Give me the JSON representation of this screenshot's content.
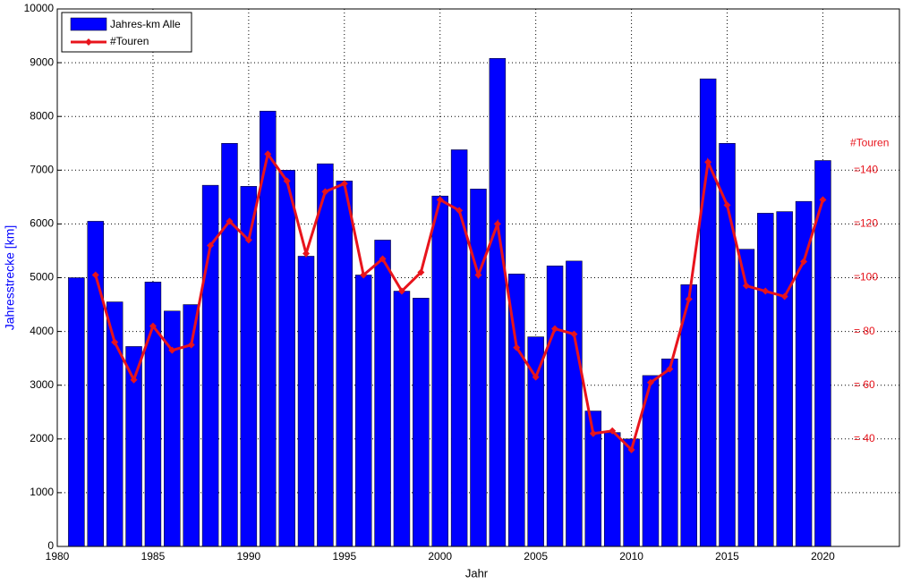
{
  "chart_data": {
    "type": "bar_line",
    "x_label": "Jahr",
    "y_label": "Jahresstrecke [km]",
    "y2_label": "#Touren",
    "x": [
      1981,
      1982,
      1983,
      1984,
      1985,
      1986,
      1987,
      1988,
      1989,
      1990,
      1991,
      1992,
      1993,
      1994,
      1995,
      1996,
      1997,
      1998,
      1999,
      2000,
      2001,
      2002,
      2003,
      2004,
      2005,
      2006,
      2007,
      2008,
      2009,
      2010,
      2011,
      2012,
      2013,
      2014,
      2015,
      2016,
      2017,
      2018,
      2019,
      2020
    ],
    "series": [
      {
        "name": "Jahres-km Alle",
        "color": "#0000ff",
        "kind": "bar",
        "values": [
          5000,
          6050,
          4550,
          3720,
          4920,
          4380,
          4500,
          6720,
          7500,
          6700,
          8100,
          7000,
          5400,
          7120,
          6800,
          5050,
          5700,
          4750,
          4620,
          6520,
          7380,
          6650,
          9080,
          5070,
          3900,
          5220,
          5310,
          2520,
          2120,
          2000,
          3180,
          3490,
          4870,
          8700,
          7500,
          5530,
          6200,
          6230,
          6420,
          7180
        ]
      },
      {
        "name": "#Touren",
        "color": "#e8141c",
        "kind": "line",
        "axis": "y2",
        "values": [
          null,
          101,
          76,
          62,
          82,
          73,
          75,
          112,
          121,
          114,
          146,
          136,
          109,
          132,
          135,
          101,
          107,
          95,
          102,
          129,
          125,
          101,
          120,
          74,
          63,
          81,
          79,
          42,
          43,
          36,
          61,
          66,
          92,
          143,
          127,
          97,
          95,
          93,
          106,
          129
        ]
      }
    ],
    "xlim": [
      1980,
      2024
    ],
    "xticks": [
      1980,
      1985,
      1990,
      1995,
      2000,
      2005,
      2010,
      2015,
      2020
    ],
    "ylim": [
      0,
      10000
    ],
    "yticks": [
      0,
      1000,
      2000,
      3000,
      4000,
      5000,
      6000,
      7000,
      8000,
      9000,
      10000
    ],
    "y2lim": [
      0,
      200
    ],
    "y2ticks": [
      {
        "value": 40,
        "label": "= 40"
      },
      {
        "value": 60,
        "label": "= 60"
      },
      {
        "value": 80,
        "label": "= 80"
      },
      {
        "value": 100,
        "label": "=100"
      },
      {
        "value": 120,
        "label": "=120"
      },
      {
        "value": 140,
        "label": "=140"
      }
    ],
    "grid": true,
    "legend": "upper left"
  }
}
